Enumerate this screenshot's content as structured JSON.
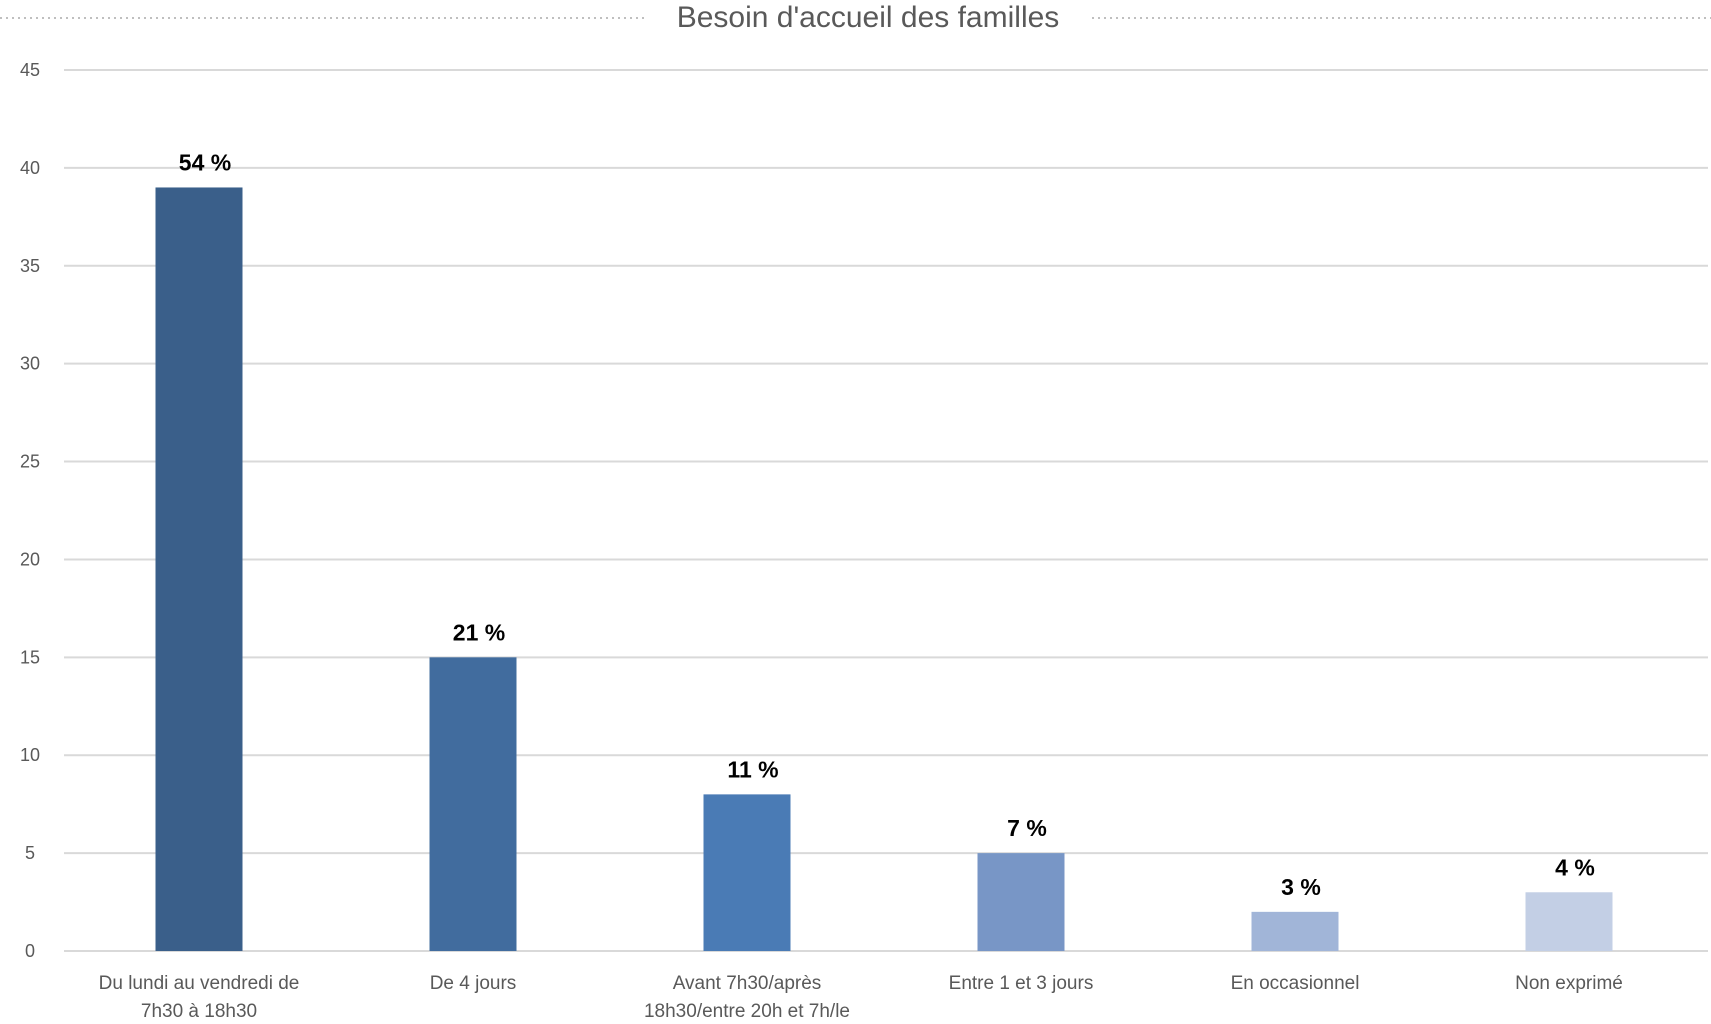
{
  "chart_data": {
    "type": "bar",
    "title": "Besoin d'accueil des familles",
    "xlabel": "",
    "ylabel": "",
    "ylim": [
      0,
      45
    ],
    "yticks": [
      0,
      5,
      10,
      15,
      20,
      25,
      30,
      35,
      40,
      45
    ],
    "grid": true,
    "legend": "none",
    "categories": [
      [
        "Du lundi au vendredi de",
        "7h30 à 18h30"
      ],
      [
        "De 4 jours"
      ],
      [
        "Avant 7h30/après",
        "18h30/entre 20h et 7h/le"
      ],
      [
        "Entre 1 et 3 jours"
      ],
      [
        "En occasionnel"
      ],
      [
        "Non exprimé"
      ]
    ],
    "values": [
      39,
      15,
      8,
      5,
      2,
      3
    ],
    "data_labels": [
      "54 %",
      "21 %",
      "11 %",
      "7 %",
      "3 %",
      "4 %"
    ],
    "colors": [
      "#3a5f8a",
      "#416c9e",
      "#4a7bb5",
      "#7896c6",
      "#a1b5d8",
      "#c3cfe5"
    ],
    "gridline_color": "#d9d9d9"
  }
}
